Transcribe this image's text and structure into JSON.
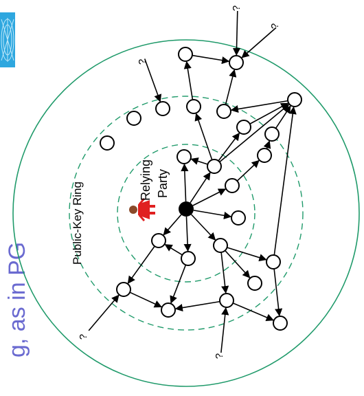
{
  "slide_title": "g, as in PG",
  "ring_label": "Public-Key Ring",
  "party_label_line1": "Relying",
  "party_label_line2": "Party",
  "unknown_marker": "?",
  "colors": {
    "ring": "#1f9a6a",
    "dashed_ring": "#1f9a6a",
    "node_stroke": "#000000",
    "center_node": "#000000",
    "person_body": "#e02020",
    "title": "#6a6ad0",
    "logo": "#2ea7df"
  },
  "icons": {
    "logo": "web-logo-icon",
    "person": "person-icon"
  }
}
